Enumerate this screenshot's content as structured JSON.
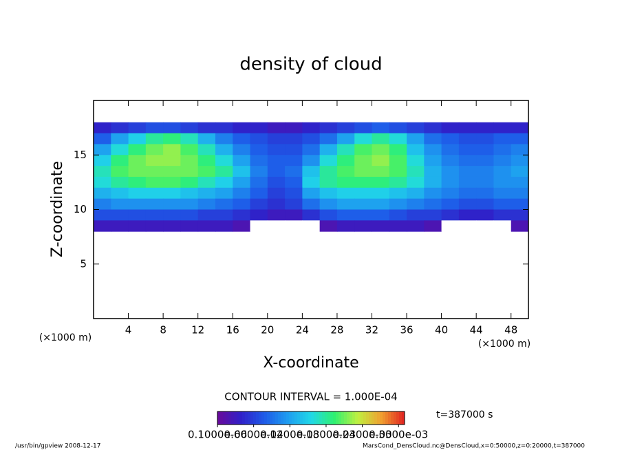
{
  "chart_data": {
    "type": "heatmap",
    "title": "density of cloud",
    "x_label": "X-coordinate",
    "y_label": "Z-coordinate",
    "x_unit": "(×1000 m)",
    "y_unit": "(×1000 m)",
    "xlim": [
      0,
      50
    ],
    "ylim": [
      0,
      20
    ],
    "xticks": [
      4,
      8,
      12,
      16,
      20,
      24,
      28,
      32,
      36,
      40,
      44,
      48
    ],
    "yticks": [
      5,
      10,
      15
    ],
    "x_edges": [
      0,
      2,
      4,
      6,
      8,
      10,
      12,
      14,
      16,
      18,
      20,
      22,
      24,
      26,
      28,
      30,
      32,
      34,
      36,
      38,
      40,
      42,
      44,
      46,
      48,
      50
    ],
    "y_edges": [
      18,
      17,
      16,
      15,
      14,
      13,
      12,
      11,
      10,
      9,
      8
    ],
    "values": [
      [
        4e-05,
        5e-05,
        6e-05,
        7e-05,
        7e-05,
        6e-05,
        5e-05,
        5e-05,
        4e-05,
        4e-05,
        3e-05,
        3e-05,
        4e-05,
        5e-05,
        6e-05,
        7e-05,
        8e-05,
        7e-05,
        6e-05,
        5e-05,
        4e-05,
        4e-05,
        4e-05,
        4e-05,
        4e-05
      ],
      [
        8e-05,
        0.00012,
        0.00015,
        0.00018,
        0.00019,
        0.00017,
        0.00013,
        0.0001,
        8e-05,
        7e-05,
        6e-05,
        6e-05,
        7e-05,
        9e-05,
        0.00012,
        0.00016,
        0.00018,
        0.00016,
        0.00012,
        9e-05,
        8e-05,
        7e-05,
        7e-05,
        8e-05,
        8e-05
      ],
      [
        0.00012,
        0.00016,
        0.00019,
        0.00021,
        0.00022,
        0.0002,
        0.00017,
        0.00013,
        0.0001,
        8e-05,
        7e-05,
        7e-05,
        9e-05,
        0.00013,
        0.00017,
        0.0002,
        0.00021,
        0.00019,
        0.00014,
        0.00011,
        9e-05,
        8e-05,
        8e-05,
        9e-05,
        0.0001
      ],
      [
        0.00015,
        0.00019,
        0.00021,
        0.00022,
        0.00022,
        0.00021,
        0.00019,
        0.00016,
        0.00012,
        9e-05,
        8e-05,
        8e-05,
        0.00011,
        0.00016,
        0.00019,
        0.00021,
        0.00022,
        0.0002,
        0.00016,
        0.00012,
        0.0001,
        9e-05,
        9e-05,
        0.0001,
        0.00011
      ],
      [
        0.00017,
        0.0002,
        0.00021,
        0.00021,
        0.00021,
        0.00021,
        0.0002,
        0.00018,
        0.00014,
        0.0001,
        8e-05,
        9e-05,
        0.00014,
        0.00018,
        0.0002,
        0.00021,
        0.00021,
        0.0002,
        0.00017,
        0.00013,
        0.00011,
        0.0001,
        0.0001,
        0.00011,
        0.00012
      ],
      [
        0.00016,
        0.00018,
        0.00019,
        0.0002,
        0.0002,
        0.00019,
        0.00017,
        0.00015,
        0.00012,
        9e-05,
        7e-05,
        8e-05,
        0.00015,
        0.00018,
        0.00019,
        0.00019,
        0.00019,
        0.00018,
        0.00016,
        0.00013,
        0.00011,
        0.0001,
        0.0001,
        0.00011,
        0.00011
      ],
      [
        0.00013,
        0.00014,
        0.00015,
        0.00015,
        0.00015,
        0.00014,
        0.00013,
        0.00012,
        0.0001,
        8e-05,
        6e-05,
        7e-05,
        0.00012,
        0.00014,
        0.00015,
        0.00015,
        0.00015,
        0.00014,
        0.00013,
        0.00011,
        0.0001,
        9e-05,
        9e-05,
        0.0001,
        0.0001
      ],
      [
        0.0001,
        0.00011,
        0.00011,
        0.00011,
        0.00011,
        0.00011,
        0.0001,
        9e-05,
        8e-05,
        6e-05,
        5e-05,
        6e-05,
        9e-05,
        0.00011,
        0.00012,
        0.00012,
        0.00012,
        0.00011,
        0.0001,
        9e-05,
        8e-05,
        7e-05,
        7e-05,
        8e-05,
        8e-05
      ],
      [
        7e-05,
        7e-05,
        7e-05,
        7e-05,
        7e-05,
        7e-05,
        6e-05,
        6e-05,
        5e-05,
        4e-05,
        3e-05,
        3e-05,
        5e-05,
        7e-05,
        8e-05,
        8e-05,
        8e-05,
        7e-05,
        6e-05,
        6e-05,
        5e-05,
        4e-05,
        4e-05,
        5e-05,
        5e-05
      ],
      [
        3e-05,
        3e-05,
        3e-05,
        3e-05,
        3e-05,
        3e-05,
        3e-05,
        3e-05,
        2e-05,
        0,
        0,
        0,
        0,
        2e-05,
        3e-05,
        3e-05,
        3e-05,
        3e-05,
        3e-05,
        2e-05,
        0,
        0,
        0,
        0,
        2e-05
      ]
    ],
    "clim": [
      0,
      0.00031
    ],
    "colorscale": [
      "#6a0a9a",
      "#3020c8",
      "#1e5ae8",
      "#1e9cf0",
      "#20d8e8",
      "#30f070",
      "#c0f040",
      "#f0a030",
      "#e02020"
    ],
    "colorbar_ticks": [
      {
        "value": 1e-07,
        "label": "0.1000e-06"
      },
      {
        "value": 6e-05,
        "label": "0.6000e-04"
      },
      {
        "value": 0.00012,
        "label": "0.1200e-03"
      },
      {
        "value": 0.00018,
        "label": "0.1800e-03"
      },
      {
        "value": 0.00024,
        "label": "0.2400e-03"
      },
      {
        "value": 0.0003,
        "label": "0.3000e-03"
      }
    ],
    "contour_note": "CONTOUR INTERVAL = 1.000E-04",
    "time_label": "t=387000 s",
    "footer_left": "/usr/bin/gpview  2008-12-17",
    "footer_right": "MarsCond_DensCloud.nc@DensCloud,x=0:50000,z=0:20000,t=387000"
  }
}
